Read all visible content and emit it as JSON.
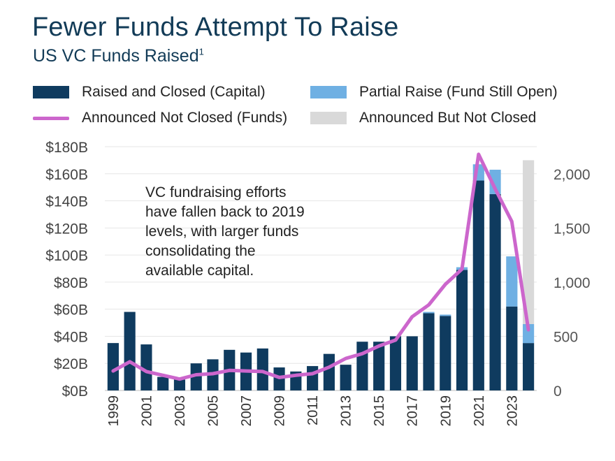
{
  "title": "Fewer Funds Attempt To Raise",
  "subtitle": "US VC Funds Raised",
  "subtitle_note": "1",
  "legend": {
    "raised": "Raised and Closed (Capital)",
    "partial": "Partial Raise (Fund Still Open)",
    "announced_funds": "Announced Not Closed (Funds)",
    "announced": "Announced But Not Closed"
  },
  "annotation": {
    "lines": [
      "VC fundraising efforts",
      "have fallen back to 2019",
      "levels, with larger funds",
      "consolidating the",
      "available capital."
    ]
  },
  "colors": {
    "raised": "#0f3b5f",
    "partial": "#6fb0e3",
    "announced": "#d9d9d9",
    "line": "#cc66cc"
  },
  "chart_data": {
    "type": "bar",
    "categories": [
      "1999",
      "2000",
      "2001",
      "2002",
      "2003",
      "2004",
      "2005",
      "2006",
      "2007",
      "2008",
      "2009",
      "2010",
      "2011",
      "2012",
      "2013",
      "2014",
      "2015",
      "2016",
      "2017",
      "2018",
      "2019",
      "2020",
      "2021",
      "2022",
      "2023",
      "2024"
    ],
    "x_tick_labels": [
      "1999",
      "2001",
      "2003",
      "2005",
      "2007",
      "2009",
      "2011",
      "2013",
      "2015",
      "2017",
      "2019",
      "2021",
      "2023"
    ],
    "series": [
      {
        "name": "Raised and Closed (Capital)",
        "values": [
          35,
          58,
          34,
          10,
          8,
          20,
          23,
          30,
          28,
          31,
          17,
          14,
          18,
          27,
          19,
          36,
          36,
          40,
          40,
          57,
          55,
          89,
          155,
          145,
          62,
          35
        ]
      },
      {
        "name": "Partial Raise (Fund Still Open)",
        "values": [
          0,
          0,
          0,
          0,
          0,
          0,
          0,
          0,
          0,
          0,
          0,
          0,
          0,
          0,
          0,
          0,
          0,
          0,
          0,
          1,
          1,
          2,
          12,
          18,
          37,
          14
        ]
      },
      {
        "name": "Announced But Not Closed",
        "values": [
          0,
          0,
          0,
          0,
          0,
          0,
          0,
          0,
          0,
          0,
          0,
          0,
          0,
          0,
          0,
          0,
          0,
          0,
          0,
          0,
          0,
          0,
          0,
          0,
          0,
          121
        ]
      },
      {
        "name": "Announced Not Closed (Funds)",
        "axis": "right",
        "values": [
          180,
          265,
          175,
          140,
          105,
          145,
          155,
          185,
          180,
          175,
          120,
          140,
          155,
          215,
          295,
          340,
          410,
          465,
          680,
          790,
          980,
          1120,
          2180,
          1860,
          1560,
          560
        ]
      }
    ],
    "y_left": {
      "ticks": [
        "$0B",
        "$20B",
        "$40B",
        "$60B",
        "$80B",
        "$100B",
        "$120B",
        "$140B",
        "$160B",
        "$180B"
      ],
      "ylim": [
        0,
        180
      ]
    },
    "y_right": {
      "ticks": [
        "0",
        "500",
        "1,000",
        "1,500",
        "2,000"
      ],
      "ylim": [
        0,
        2250
      ]
    },
    "grid": true
  }
}
